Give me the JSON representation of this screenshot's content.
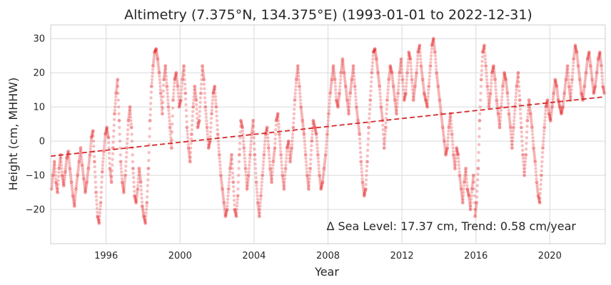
{
  "chart_data": {
    "type": "scatter",
    "title": "Altimetry (7.375°N, 134.375°E) (1993-01-01 to 2022-12-31)",
    "xlabel": "Year",
    "ylabel": "Height (cm, MHHW)",
    "xlim": [
      "1993-01-01",
      "2022-12-31"
    ],
    "ylim": [
      -30,
      34
    ],
    "x_ticks": [
      "1996",
      "2000",
      "2004",
      "2008",
      "2012",
      "2016",
      "2020"
    ],
    "y_ticks": [
      -20,
      -10,
      0,
      10,
      20,
      30
    ],
    "grid": true,
    "annotation": "Δ Sea Level: 17.37 cm, Trend: 0.58 cm/year",
    "colors": {
      "points": "#e41a1c",
      "trend": "#d62728"
    },
    "series": [
      {
        "kind": "points",
        "x_dates": [
          "1993-01",
          "1993-02",
          "1993-03",
          "1993-04",
          "1993-05",
          "1993-06",
          "1993-07",
          "1993-08",
          "1993-09",
          "1993-10",
          "1993-11",
          "1993-12",
          "1994-01",
          "1994-02",
          "1994-03",
          "1994-04",
          "1994-05",
          "1994-06",
          "1994-07",
          "1994-08",
          "1994-09",
          "1994-10",
          "1994-11",
          "1994-12",
          "1995-01",
          "1995-02",
          "1995-03",
          "1995-04",
          "1995-05",
          "1995-06",
          "1995-07",
          "1995-08",
          "1995-09",
          "1995-10",
          "1995-11",
          "1995-12",
          "1996-01",
          "1996-02",
          "1996-03",
          "1996-04",
          "1996-05",
          "1996-06",
          "1996-07",
          "1996-08",
          "1996-09",
          "1996-10",
          "1996-11",
          "1996-12",
          "1997-01",
          "1997-02",
          "1997-03",
          "1997-04",
          "1997-05",
          "1997-06",
          "1997-07",
          "1997-08",
          "1997-09",
          "1997-10",
          "1997-11",
          "1997-12",
          "1998-01",
          "1998-02",
          "1998-03",
          "1998-04",
          "1998-05",
          "1998-06",
          "1998-07",
          "1998-08",
          "1998-09",
          "1998-10",
          "1998-11",
          "1998-12",
          "1999-01",
          "1999-02",
          "1999-03",
          "1999-04",
          "1999-05",
          "1999-06",
          "1999-07",
          "1999-08",
          "1999-09",
          "1999-10",
          "1999-11",
          "1999-12",
          "2000-01",
          "2000-02",
          "2000-03",
          "2000-04",
          "2000-05",
          "2000-06",
          "2000-07",
          "2000-08",
          "2000-09",
          "2000-10",
          "2000-11",
          "2000-12",
          "2001-01",
          "2001-02",
          "2001-03",
          "2001-04",
          "2001-05",
          "2001-06",
          "2001-07",
          "2001-08",
          "2001-09",
          "2001-10",
          "2001-11",
          "2001-12",
          "2002-01",
          "2002-02",
          "2002-03",
          "2002-04",
          "2002-05",
          "2002-06",
          "2002-07",
          "2002-08",
          "2002-09",
          "2002-10",
          "2002-11",
          "2002-12",
          "2003-01",
          "2003-02",
          "2003-03",
          "2003-04",
          "2003-05",
          "2003-06",
          "2003-07",
          "2003-08",
          "2003-09",
          "2003-10",
          "2003-11",
          "2003-12",
          "2004-01",
          "2004-02",
          "2004-03",
          "2004-04",
          "2004-05",
          "2004-06",
          "2004-07",
          "2004-08",
          "2004-09",
          "2004-10",
          "2004-11",
          "2004-12",
          "2005-01",
          "2005-02",
          "2005-03",
          "2005-04",
          "2005-05",
          "2005-06",
          "2005-07",
          "2005-08",
          "2005-09",
          "2005-10",
          "2005-11",
          "2005-12",
          "2006-01",
          "2006-02",
          "2006-03",
          "2006-04",
          "2006-05",
          "2006-06",
          "2006-07",
          "2006-08",
          "2006-09",
          "2006-10",
          "2006-11",
          "2006-12",
          "2007-01",
          "2007-02",
          "2007-03",
          "2007-04",
          "2007-05",
          "2007-06",
          "2007-07",
          "2007-08",
          "2007-09",
          "2007-10",
          "2007-11",
          "2007-12",
          "2008-01",
          "2008-02",
          "2008-03",
          "2008-04",
          "2008-05",
          "2008-06",
          "2008-07",
          "2008-08",
          "2008-09",
          "2008-10",
          "2008-11",
          "2008-12",
          "2009-01",
          "2009-02",
          "2009-03",
          "2009-04",
          "2009-05",
          "2009-06",
          "2009-07",
          "2009-08",
          "2009-09",
          "2009-10",
          "2009-11",
          "2009-12",
          "2010-01",
          "2010-02",
          "2010-03",
          "2010-04",
          "2010-05",
          "2010-06",
          "2010-07",
          "2010-08",
          "2010-09",
          "2010-10",
          "2010-11",
          "2010-12",
          "2011-01",
          "2011-02",
          "2011-03",
          "2011-04",
          "2011-05",
          "2011-06",
          "2011-07",
          "2011-08",
          "2011-09",
          "2011-10",
          "2011-11",
          "2011-12",
          "2012-01",
          "2012-02",
          "2012-03",
          "2012-04",
          "2012-05",
          "2012-06",
          "2012-07",
          "2012-08",
          "2012-09",
          "2012-10",
          "2012-11",
          "2012-12",
          "2013-01",
          "2013-02",
          "2013-03",
          "2013-04",
          "2013-05",
          "2013-06",
          "2013-07",
          "2013-08",
          "2013-09",
          "2013-10",
          "2013-11",
          "2013-12",
          "2014-01",
          "2014-02",
          "2014-03",
          "2014-04",
          "2014-05",
          "2014-06",
          "2014-07",
          "2014-08",
          "2014-09",
          "2014-10",
          "2014-11",
          "2014-12",
          "2015-01",
          "2015-02",
          "2015-03",
          "2015-04",
          "2015-05",
          "2015-06",
          "2015-07",
          "2015-08",
          "2015-09",
          "2015-10",
          "2015-11",
          "2015-12",
          "2016-01",
          "2016-02",
          "2016-03",
          "2016-04",
          "2016-05",
          "2016-06",
          "2016-07",
          "2016-08",
          "2016-09",
          "2016-10",
          "2016-11",
          "2016-12",
          "2017-01",
          "2017-02",
          "2017-03",
          "2017-04",
          "2017-05",
          "2017-06",
          "2017-07",
          "2017-08",
          "2017-09",
          "2017-10",
          "2017-11",
          "2017-12",
          "2018-01",
          "2018-02",
          "2018-03",
          "2018-04",
          "2018-05",
          "2018-06",
          "2018-07",
          "2018-08",
          "2018-09",
          "2018-10",
          "2018-11",
          "2018-12",
          "2019-01",
          "2019-02",
          "2019-03",
          "2019-04",
          "2019-05",
          "2019-06",
          "2019-07",
          "2019-08",
          "2019-09",
          "2019-10",
          "2019-11",
          "2019-12",
          "2020-01",
          "2020-02",
          "2020-03",
          "2020-04",
          "2020-05",
          "2020-06",
          "2020-07",
          "2020-08",
          "2020-09",
          "2020-10",
          "2020-11",
          "2020-12",
          "2021-01",
          "2021-02",
          "2021-03",
          "2021-04",
          "2021-05",
          "2021-06",
          "2021-07",
          "2021-08",
          "2021-09",
          "2021-10",
          "2021-11",
          "2021-12",
          "2022-01",
          "2022-02",
          "2022-03",
          "2022-04",
          "2022-05",
          "2022-06",
          "2022-07",
          "2022-08",
          "2022-09",
          "2022-10",
          "2022-11",
          "2022-12"
        ],
        "y": [
          -14,
          -10,
          -6,
          -12,
          -15,
          -8,
          -4,
          -10,
          -13,
          -9,
          -5,
          -3,
          -8,
          -12,
          -16,
          -19,
          -14,
          -10,
          -6,
          -2,
          -7,
          -11,
          -15,
          -12,
          -8,
          -4,
          1,
          3,
          -6,
          -15,
          -22,
          -24,
          -18,
          -9,
          -3,
          2,
          4,
          1,
          -8,
          -12,
          -2,
          8,
          14,
          18,
          6,
          -6,
          -12,
          -15,
          -10,
          -2,
          6,
          10,
          4,
          -8,
          -16,
          -18,
          -14,
          -8,
          -12,
          -19,
          -22,
          -24,
          -18,
          -8,
          6,
          16,
          22,
          26,
          27,
          24,
          20,
          14,
          8,
          18,
          22,
          16,
          10,
          4,
          -2,
          12,
          18,
          20,
          16,
          10,
          12,
          18,
          22,
          14,
          4,
          -2,
          -6,
          2,
          10,
          16,
          12,
          4,
          6,
          14,
          22,
          18,
          10,
          4,
          -2,
          0,
          8,
          14,
          16,
          10,
          2,
          -4,
          -10,
          -14,
          -18,
          -22,
          -20,
          -14,
          -8,
          -4,
          -12,
          -20,
          -22,
          -16,
          -4,
          6,
          4,
          -2,
          -8,
          -14,
          -10,
          -4,
          2,
          6,
          -4,
          -12,
          -18,
          -22,
          -16,
          -10,
          -4,
          2,
          4,
          -2,
          -8,
          -12,
          -6,
          -2,
          6,
          8,
          2,
          -4,
          -10,
          -14,
          -8,
          -2,
          0,
          -6,
          -2,
          4,
          12,
          18,
          22,
          16,
          10,
          6,
          2,
          -4,
          -10,
          -14,
          -8,
          0,
          6,
          4,
          2,
          -4,
          -10,
          -14,
          -12,
          -8,
          -4,
          2,
          8,
          14,
          18,
          22,
          18,
          12,
          10,
          14,
          20,
          24,
          20,
          16,
          12,
          8,
          14,
          18,
          22,
          16,
          10,
          6,
          2,
          -6,
          -12,
          -16,
          -14,
          -6,
          4,
          12,
          20,
          26,
          27,
          24,
          20,
          16,
          10,
          6,
          -2,
          4,
          12,
          18,
          22,
          20,
          16,
          12,
          8,
          14,
          20,
          24,
          18,
          12,
          14,
          20,
          26,
          24,
          18,
          12,
          16,
          20,
          26,
          28,
          22,
          18,
          14,
          12,
          10,
          16,
          22,
          28,
          30,
          26,
          20,
          16,
          12,
          8,
          4,
          0,
          -4,
          -2,
          4,
          8,
          2,
          -4,
          -8,
          -2,
          -4,
          -10,
          -14,
          -18,
          -12,
          -8,
          -14,
          -16,
          -20,
          -14,
          -10,
          -22,
          -18,
          -8,
          6,
          18,
          26,
          28,
          22,
          16,
          10,
          14,
          20,
          22,
          18,
          12,
          8,
          4,
          10,
          16,
          20,
          18,
          14,
          8,
          4,
          -2,
          4,
          10,
          16,
          20,
          12,
          4,
          -4,
          -10,
          -4,
          6,
          12,
          8,
          4,
          -2,
          -6,
          -12,
          -16,
          -18,
          -10,
          -2,
          4,
          10,
          12,
          8,
          6,
          10,
          14,
          18,
          16,
          12,
          10,
          8,
          10,
          14,
          18,
          22,
          16,
          12,
          18,
          24,
          28,
          26,
          22,
          18,
          14,
          12,
          16,
          20,
          24,
          26,
          22,
          18,
          14,
          16,
          20,
          24,
          26,
          22,
          16,
          14
        ]
      },
      {
        "kind": "trend",
        "x_dates": [
          "1993-01-01",
          "2022-12-31"
        ],
        "y": [
          -4.4,
          13.0
        ]
      }
    ]
  }
}
